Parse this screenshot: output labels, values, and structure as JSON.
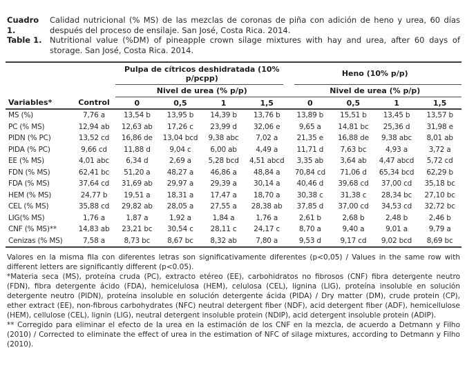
{
  "caption": {
    "es_label": "Cuadro 1.",
    "es_text": "Calidad nutricional (% MS) de las mezclas de coronas de piña con adición de heno y urea, 60 días después del proceso de ensilaje. San José, Costa Rica. 2014.",
    "en_label": "Table 1.",
    "en_text": "Nutritional value (%DM) of pineapple crown silage mixtures with hay and urea, after 60 days of storage. San José, Costa Rica. 2014."
  },
  "table": {
    "variables_header": "Variables*",
    "control_header": "Control",
    "group1_header": "Pulpa de cítricos deshidratada (10% p/pcpp)",
    "group2_header": "Heno (10% p/p)",
    "urea_subheader": "Nivel de urea (% p/p)",
    "urea_levels": [
      "0",
      "0,5",
      "1",
      "1,5"
    ],
    "rows": [
      {
        "label": "MS (%)",
        "values": [
          "7,76 a",
          "13,54 b",
          "13,95 b",
          "14,39 b",
          "13,76 b",
          "13,89 b",
          "15,51 b",
          "13,45 b",
          "13,57 b"
        ]
      },
      {
        "label": "PC (% MS)",
        "values": [
          "12,94 ab",
          "12,63 ab",
          "17,26 c",
          "23,99 d",
          "32,06 e",
          "9,65 a",
          "14,81 bc",
          "25,36 d",
          "31,98 e"
        ]
      },
      {
        "label": "PIDN (% PC)",
        "values": [
          "13,52 cd",
          "16,86 de",
          "13,04 bcd",
          "9,38 abc",
          "7,02 a",
          "21,35 e",
          "16,88 de",
          "9,38 abc",
          "8,01 ab"
        ]
      },
      {
        "label": "PIDA (% PC)",
        "values": [
          "9,66 cd",
          "11,88 d",
          "9,04 c",
          "6,00 ab",
          "4,49 a",
          "11,71 d",
          "7,63 bc",
          "4,93 a",
          "3,72 a"
        ]
      },
      {
        "label": "EE (% MS)",
        "values": [
          "4,01 abc",
          "6,34 d",
          "2,69 a",
          "5,28 bcd",
          "4,51 abcd",
          "3,35 ab",
          "3,64 ab",
          "4,47 abcd",
          "5,72 cd"
        ]
      },
      {
        "label": "FDN (% MS)",
        "values": [
          "62,41 bc",
          "51,20 a",
          "48,27 a",
          "46,86 a",
          "48,84 a",
          "70,84 cd",
          "71,06 d",
          "65,34 bcd",
          "62,29 b"
        ]
      },
      {
        "label": "FDA (% MS)",
        "values": [
          "37,64 cd",
          "31,69 ab",
          "29,97 a",
          "29,39 a",
          "30,14 a",
          "40,46 d",
          "39,68 cd",
          "37,00 cd",
          "35,18 bc"
        ]
      },
      {
        "label": "HEM (% MS)",
        "values": [
          "24,77 b",
          "19,51 a",
          "18,31 a",
          "17,47 a",
          "18,70 a",
          "30,38 c",
          "31,38 c",
          "28,34 bc",
          "27,10 bc"
        ]
      },
      {
        "label": "CEL (% MS)",
        "values": [
          "35,88 cd",
          "29,82 ab",
          "28,05 a",
          "27,55 a",
          "28,38 ab",
          "37,85 d",
          "37,00 cd",
          "34,53 cd",
          "32,72 bc"
        ]
      },
      {
        "label": "LIG(% MS)",
        "values": [
          "1,76 a",
          "1,87 a",
          "1,92 a",
          "1,84 a",
          "1,76 a",
          "2,61 b",
          "2,68 b",
          "2,48 b",
          "2,46 b"
        ]
      },
      {
        "label": "CNF (% MS)**",
        "values": [
          "14,83 ab",
          "23,21 bc",
          "30,54 c",
          "28,11 c",
          "24,17 c",
          "8,70 a",
          "9,40 a",
          "9,01 a",
          "9,79 a"
        ]
      },
      {
        "label": "Cenizas (% MS)",
        "values": [
          "7,58 a",
          "8,73 bc",
          "8,67 bc",
          "8,32 ab",
          "7,80 a",
          "9,53 d",
          "9,17 cd",
          "9,02 bcd",
          "8,69 bc"
        ]
      }
    ]
  },
  "footnotes": [
    "Valores en la misma fila con diferentes letras son significativamente diferentes (p<0,05) / Values in the same row with different letters are significantly different (p<0.05).",
    "*Materia seca (MS), proteína cruda (PC), extracto etéreo (EE), carbohidratos no fibrosos (CNF) fibra detergente neutro (FDN), fibra detergente ácido (FDA), hemicelulosa (HEM), celulosa (CEL), lignina (LIG), proteína insoluble en solución detergente neutro (PIDN), proteína insoluble en solución detergente ácida (PIDA) / Dry matter (DM), crude protein (CP), ether extract (EE), non-fibrous carbohydrates (NFC) neutral detergent fiber (NDF), acid detergent fiber (ADF), hemicellulose (HEM), cellulose (CEL), lignin (LIG), neutral detergent insoluble protein (NDIP), acid detergent insoluble protein (ADIP).",
    "** Corregido para eliminar el efecto de la urea en la estimación de los CNF en la mezcla, de acuerdo a Detmann y Filho (2010) / Corrected to eliminate the effect of urea in the estimation of NFC of silage mixtures, according to Detmann y Filho (2010)."
  ],
  "colors": {
    "background": "#ffffff",
    "text": "#2a2a2a",
    "rule_thick": "#3d3d3d",
    "rule_thin": "#4a4a4a"
  }
}
